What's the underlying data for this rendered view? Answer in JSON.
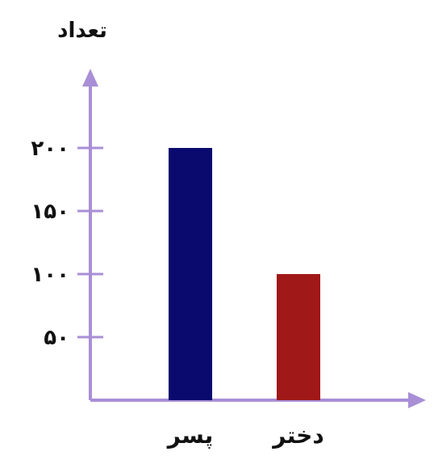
{
  "chart_data": {
    "type": "bar",
    "ylabel": "تعداد",
    "xlabel": "",
    "categories": [
      "پسر",
      "دختر"
    ],
    "values": [
      200,
      100
    ],
    "bar_colors": [
      "#0a0a6e",
      "#a01818"
    ],
    "axis_color": "#a98fd6",
    "yticks": [
      50,
      100,
      150,
      200
    ],
    "ytick_labels": [
      "۵۰",
      "۱۰۰",
      "۱۵۰",
      "۲۰۰"
    ],
    "ylim": [
      0,
      250
    ],
    "grid": false,
    "legend": "none"
  }
}
